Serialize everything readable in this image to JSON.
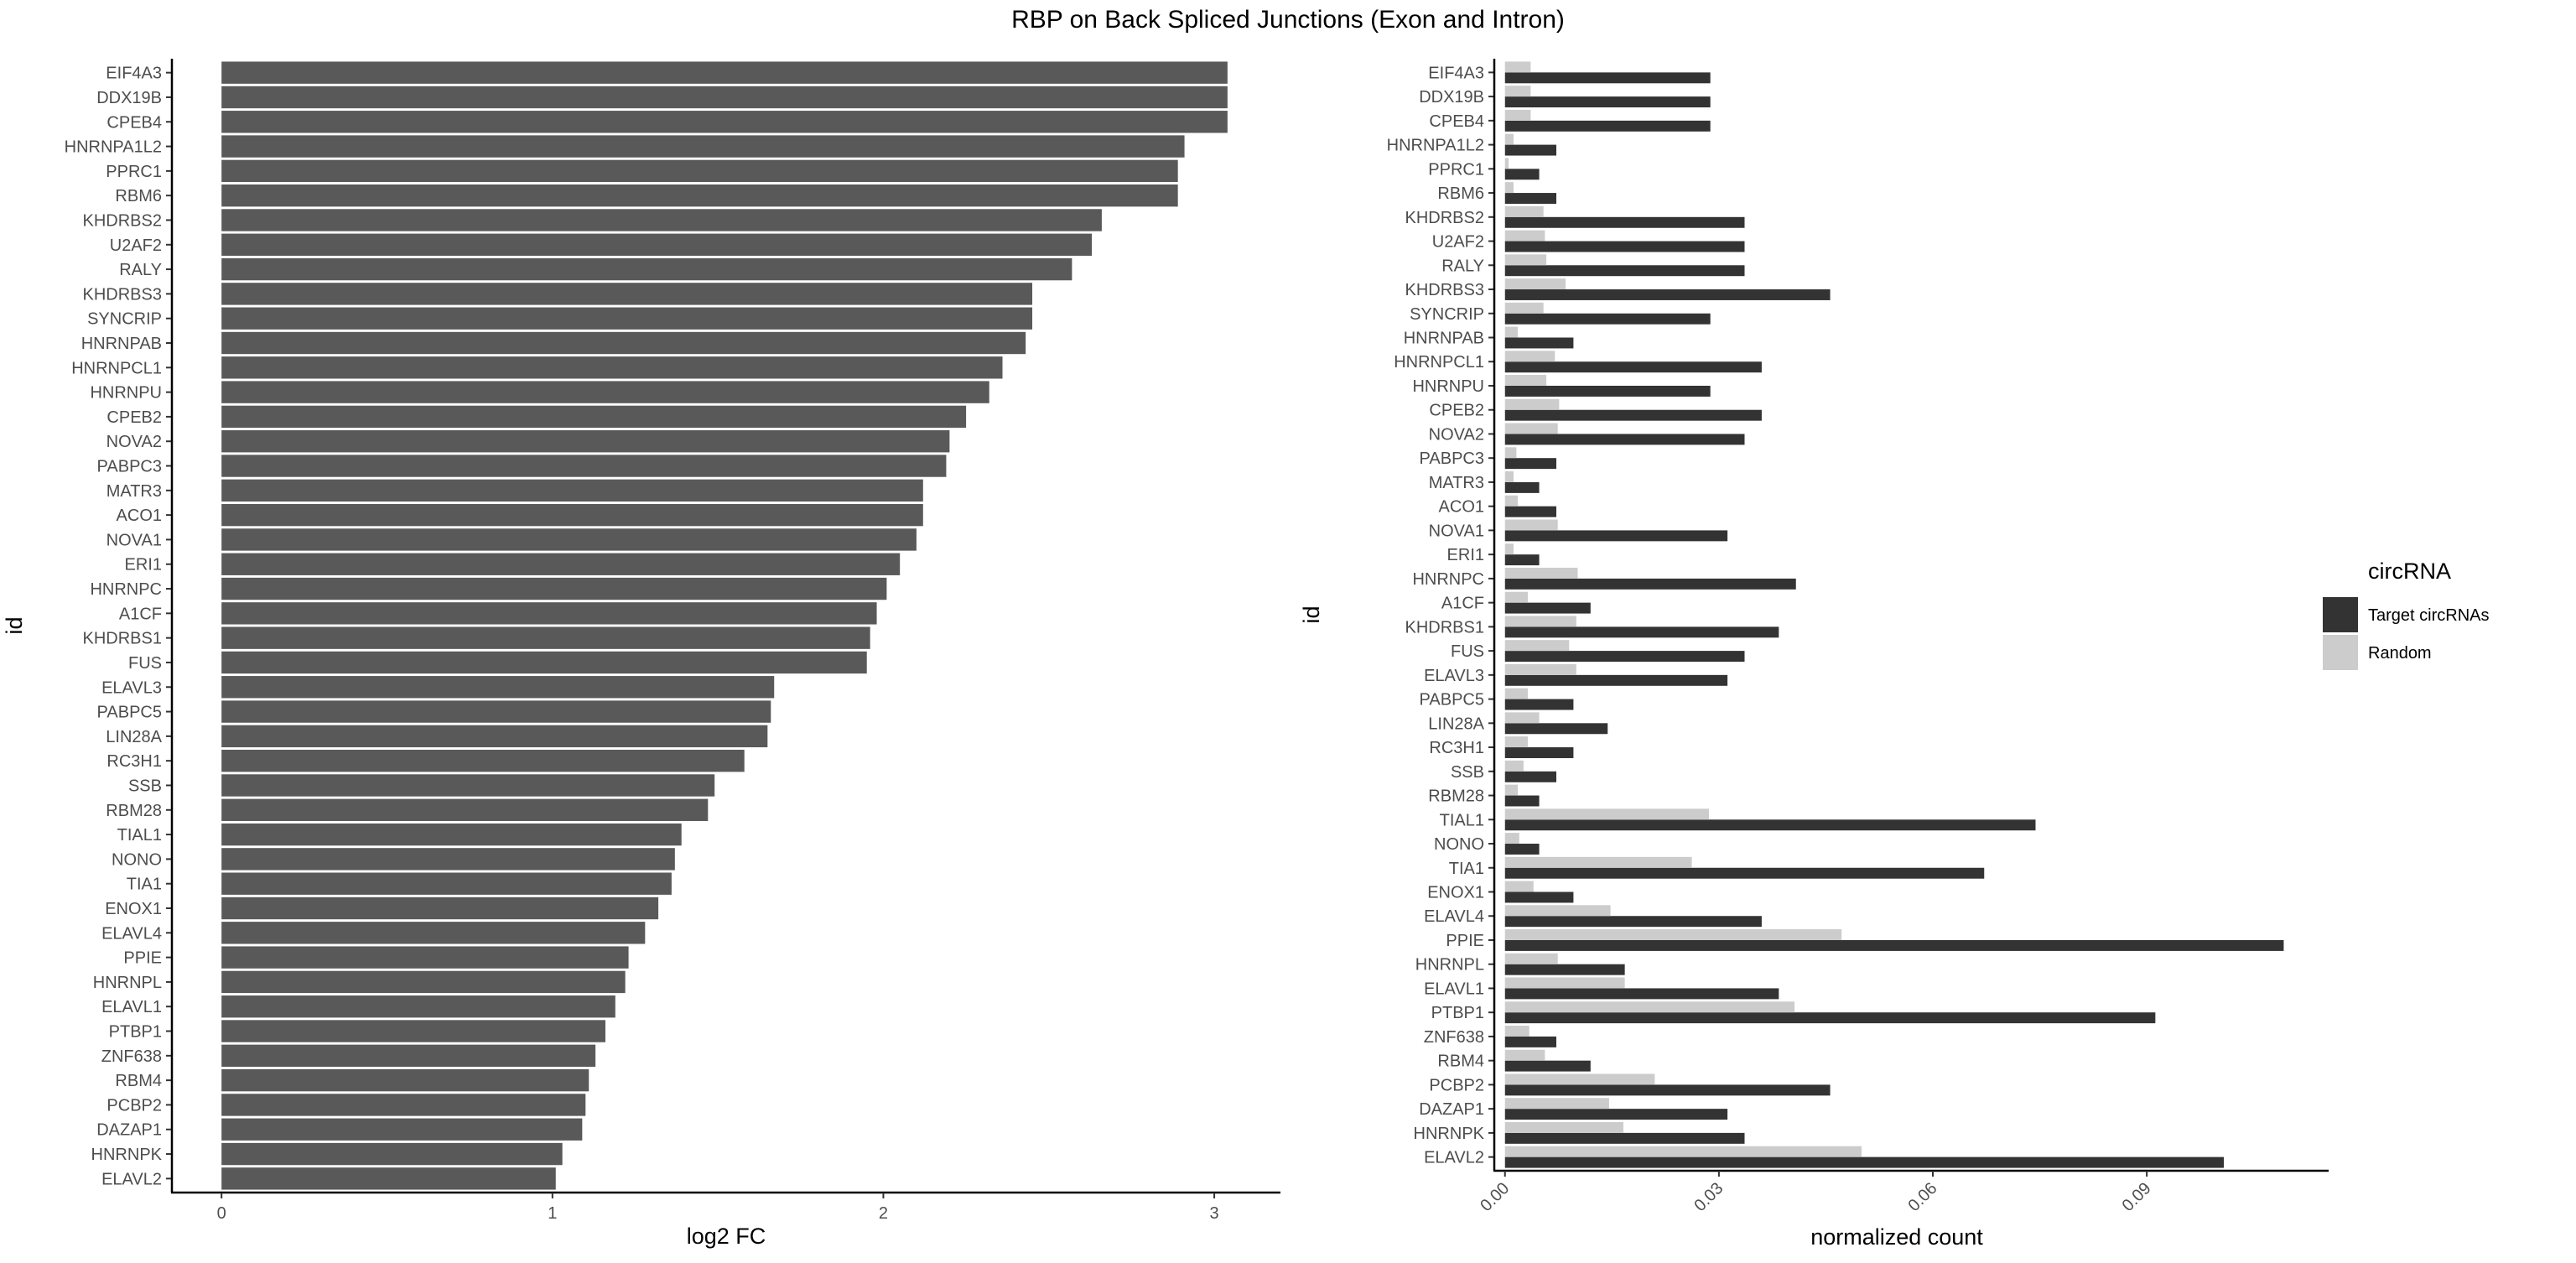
{
  "title": "RBP on Back Spliced Junctions (Exon and Intron)",
  "chart_data": [
    {
      "type": "bar",
      "orientation": "horizontal",
      "ylabel": "id",
      "xlabel": "log2 FC",
      "xlim": [
        -0.15,
        3.2
      ],
      "xticks": [
        "0",
        "1",
        "2",
        "3"
      ],
      "grid": false,
      "bar_color": "#595959",
      "categories": [
        "EIF4A3",
        "DDX19B",
        "CPEB4",
        "HNRNPA1L2",
        "PPRC1",
        "RBM6",
        "KHDRBS2",
        "U2AF2",
        "RALY",
        "KHDRBS3",
        "SYNCRIP",
        "HNRNPAB",
        "HNRNPCL1",
        "HNRNPU",
        "CPEB2",
        "NOVA2",
        "PABPC3",
        "MATR3",
        "ACO1",
        "NOVA1",
        "ERI1",
        "HNRNPC",
        "A1CF",
        "KHDRBS1",
        "FUS",
        "ELAVL3",
        "PABPC5",
        "LIN28A",
        "RC3H1",
        "SSB",
        "RBM28",
        "TIAL1",
        "NONO",
        "TIA1",
        "ENOX1",
        "ELAVL4",
        "PPIE",
        "HNRNPL",
        "ELAVL1",
        "PTBP1",
        "ZNF638",
        "RBM4",
        "PCBP2",
        "DAZAP1",
        "HNRNPK",
        "ELAVL2"
      ],
      "values": [
        3.04,
        3.04,
        3.04,
        2.91,
        2.89,
        2.89,
        2.66,
        2.63,
        2.57,
        2.45,
        2.45,
        2.43,
        2.36,
        2.32,
        2.25,
        2.2,
        2.19,
        2.12,
        2.12,
        2.1,
        2.05,
        2.01,
        1.98,
        1.96,
        1.95,
        1.67,
        1.66,
        1.65,
        1.58,
        1.49,
        1.47,
        1.39,
        1.37,
        1.36,
        1.32,
        1.28,
        1.23,
        1.22,
        1.19,
        1.16,
        1.13,
        1.11,
        1.1,
        1.09,
        1.03,
        1.01
      ]
    },
    {
      "type": "bar",
      "orientation": "horizontal",
      "ylabel": "id",
      "xlabel": "normalized count",
      "xlim": [
        -0.0015,
        0.1155
      ],
      "xticks": [
        "0.00",
        "0.03",
        "0.06",
        "0.09"
      ],
      "grid": false,
      "categories": [
        "EIF4A3",
        "DDX19B",
        "CPEB4",
        "HNRNPA1L2",
        "PPRC1",
        "RBM6",
        "KHDRBS2",
        "U2AF2",
        "RALY",
        "KHDRBS3",
        "SYNCRIP",
        "HNRNPAB",
        "HNRNPCL1",
        "HNRNPU",
        "CPEB2",
        "NOVA2",
        "PABPC3",
        "MATR3",
        "ACO1",
        "NOVA1",
        "ERI1",
        "HNRNPC",
        "A1CF",
        "KHDRBS1",
        "FUS",
        "ELAVL3",
        "PABPC5",
        "LIN28A",
        "RC3H1",
        "SSB",
        "RBM28",
        "TIAL1",
        "NONO",
        "TIA1",
        "ENOX1",
        "ELAVL4",
        "PPIE",
        "HNRNPL",
        "ELAVL1",
        "PTBP1",
        "ZNF638",
        "RBM4",
        "PCBP2",
        "DAZAP1",
        "HNRNPK",
        "ELAVL2"
      ],
      "series": [
        {
          "name": "Target circRNAs",
          "color": "#333333",
          "values": [
            0.0288,
            0.0288,
            0.0288,
            0.0072,
            0.0048,
            0.0072,
            0.0336,
            0.0336,
            0.0336,
            0.0456,
            0.0288,
            0.0096,
            0.036,
            0.0288,
            0.036,
            0.0336,
            0.0072,
            0.0048,
            0.0072,
            0.0312,
            0.0048,
            0.0408,
            0.012,
            0.0384,
            0.0336,
            0.0312,
            0.0096,
            0.0144,
            0.0096,
            0.0072,
            0.0048,
            0.0744,
            0.0048,
            0.0672,
            0.0096,
            0.036,
            0.1092,
            0.0168,
            0.0384,
            0.0912,
            0.0072,
            0.012,
            0.0456,
            0.0312,
            0.0336,
            0.1008
          ]
        },
        {
          "name": "Random",
          "color": "#cccccc",
          "values": [
            0.0036,
            0.0036,
            0.0036,
            0.0012,
            0.0005,
            0.0012,
            0.0054,
            0.0056,
            0.0058,
            0.0085,
            0.0054,
            0.0018,
            0.007,
            0.0058,
            0.0076,
            0.0074,
            0.0016,
            0.0012,
            0.0018,
            0.0074,
            0.0012,
            0.0102,
            0.0032,
            0.01,
            0.009,
            0.01,
            0.0032,
            0.0048,
            0.0032,
            0.0026,
            0.0018,
            0.0286,
            0.002,
            0.0262,
            0.004,
            0.0148,
            0.0472,
            0.0074,
            0.0168,
            0.0406,
            0.0034,
            0.0056,
            0.021,
            0.0146,
            0.0166,
            0.05
          ]
        }
      ]
    }
  ],
  "legend": {
    "title": "circRNA",
    "placement": "right",
    "entries": [
      {
        "label": "Target circRNAs",
        "color": "#333333"
      },
      {
        "label": "Random",
        "color": "#cccccc"
      }
    ]
  }
}
